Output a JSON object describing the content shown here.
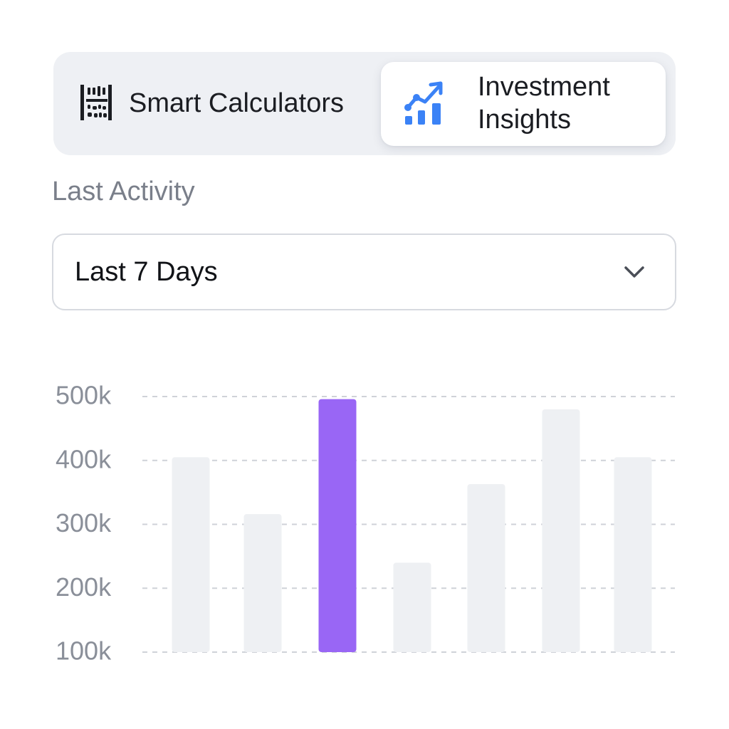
{
  "tabs": {
    "smart_calculators": {
      "label": "Smart Calculators",
      "icon": "abacus-icon",
      "selected": false
    },
    "investment_insights": {
      "label": "Investment Insights",
      "icon": "growth-chart-icon",
      "selected": true,
      "icon_color": "#3b82f6"
    }
  },
  "activity": {
    "section_label": "Last Activity",
    "period_select": {
      "value": "Last 7 Days",
      "icon": "chevron-down-icon"
    }
  },
  "colors": {
    "highlight_bar": "#9966f5",
    "muted_bar": "#eef0f3",
    "gridline": "#cfd2d8"
  },
  "chart_data": {
    "type": "bar",
    "title": "",
    "xlabel": "",
    "ylabel": "",
    "ylim": [
      100000,
      500000
    ],
    "yticks": [
      500000,
      400000,
      300000,
      200000,
      100000
    ],
    "ytick_labels": [
      "500k",
      "400k",
      "300k",
      "200k",
      "100k"
    ],
    "grid": true,
    "grid_style": "dashed",
    "categories": [
      "",
      "",
      "",
      "",
      "",
      "",
      ""
    ],
    "values": [
      405000,
      316000,
      496000,
      240000,
      363000,
      480000,
      405000
    ],
    "highlight_index": 2
  }
}
